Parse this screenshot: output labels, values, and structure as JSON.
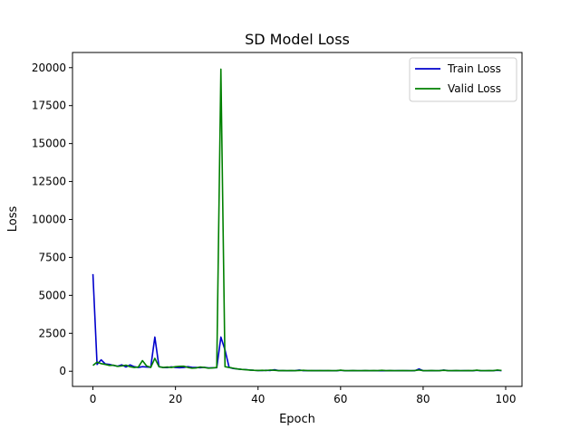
{
  "chart_data": {
    "type": "line",
    "title": "SD Model Loss",
    "xlabel": "Epoch",
    "ylabel": "Loss",
    "xlim": [
      -4.95,
      103.95
    ],
    "ylim": [
      -1000,
      21000
    ],
    "xticks": [
      0,
      20,
      40,
      60,
      80,
      100
    ],
    "yticks": [
      0,
      2500,
      5000,
      7500,
      10000,
      12500,
      15000,
      17500,
      20000
    ],
    "grid": false,
    "legend_position": "top-right",
    "series": [
      {
        "name": "Train Loss",
        "color": "#0000cc",
        "x": [
          0,
          1,
          2,
          3,
          4,
          5,
          6,
          7,
          8,
          9,
          10,
          11,
          12,
          13,
          14,
          15,
          16,
          17,
          18,
          19,
          20,
          21,
          22,
          23,
          24,
          25,
          26,
          27,
          28,
          29,
          30,
          31,
          32,
          33,
          34,
          35,
          36,
          37,
          38,
          39,
          40,
          41,
          42,
          43,
          44,
          45,
          46,
          47,
          48,
          49,
          50,
          51,
          52,
          53,
          54,
          55,
          56,
          57,
          58,
          59,
          60,
          61,
          62,
          63,
          64,
          65,
          66,
          67,
          68,
          69,
          70,
          71,
          72,
          73,
          74,
          75,
          76,
          77,
          78,
          79,
          80,
          81,
          82,
          83,
          84,
          85,
          86,
          87,
          88,
          89,
          90,
          91,
          92,
          93,
          94,
          95,
          96,
          97,
          98,
          99
        ],
        "values": [
          6400,
          450,
          750,
          480,
          450,
          380,
          330,
          420,
          280,
          420,
          300,
          250,
          300,
          280,
          260,
          2250,
          300,
          250,
          240,
          290,
          250,
          230,
          250,
          300,
          260,
          250,
          230,
          260,
          220,
          230,
          230,
          2250,
          1400,
          250,
          180,
          150,
          120,
          110,
          80,
          60,
          50,
          45,
          60,
          50,
          100,
          40,
          40,
          30,
          35,
          40,
          80,
          40,
          40,
          35,
          40,
          35,
          40,
          35,
          30,
          30,
          60,
          35,
          30,
          40,
          30,
          30,
          40,
          30,
          35,
          30,
          40,
          35,
          40,
          30,
          40,
          35,
          40,
          30,
          40,
          150,
          35,
          30,
          40,
          30,
          40,
          80,
          40,
          30,
          40,
          30,
          40,
          35,
          30,
          60,
          30,
          35,
          30,
          40,
          60,
          40
        ]
      },
      {
        "name": "Valid Loss",
        "color": "#008000",
        "x": [
          0,
          1,
          2,
          3,
          4,
          5,
          6,
          7,
          8,
          9,
          10,
          11,
          12,
          13,
          14,
          15,
          16,
          17,
          18,
          19,
          20,
          21,
          22,
          23,
          24,
          25,
          26,
          27,
          28,
          29,
          30,
          31,
          32,
          33,
          34,
          35,
          36,
          37,
          38,
          39,
          40,
          41,
          42,
          43,
          44,
          45,
          46,
          47,
          48,
          49,
          50,
          51,
          52,
          53,
          54,
          55,
          56,
          57,
          58,
          59,
          60,
          61,
          62,
          63,
          64,
          65,
          66,
          67,
          68,
          69,
          70,
          71,
          72,
          73,
          74,
          75,
          76,
          77,
          78,
          79,
          80,
          81,
          82,
          83,
          84,
          85,
          86,
          87,
          88,
          89,
          90,
          91,
          92,
          93,
          94,
          95,
          96,
          97,
          98,
          99
        ],
        "values": [
          380,
          600,
          500,
          450,
          380,
          400,
          320,
          350,
          400,
          300,
          250,
          280,
          700,
          350,
          250,
          850,
          300,
          250,
          280,
          250,
          300,
          320,
          330,
          250,
          200,
          220,
          280,
          250,
          200,
          220,
          250,
          19900,
          300,
          250,
          200,
          150,
          120,
          100,
          80,
          60,
          50,
          60,
          50,
          80,
          60,
          40,
          50,
          40,
          45,
          40,
          50,
          60,
          40,
          45,
          40,
          45,
          40,
          45,
          40,
          40,
          70,
          40,
          40,
          50,
          40,
          40,
          45,
          40,
          50,
          40,
          60,
          40,
          50,
          40,
          40,
          45,
          40,
          40,
          45,
          80,
          40,
          40,
          45,
          40,
          40,
          60,
          40,
          40,
          45,
          40,
          40,
          45,
          40,
          70,
          40,
          40,
          45,
          40,
          80,
          50
        ]
      }
    ]
  }
}
